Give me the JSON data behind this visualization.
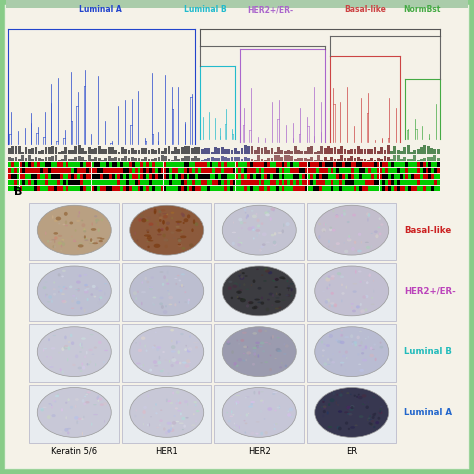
{
  "fig_width": 4.74,
  "fig_height": 4.74,
  "dpi": 100,
  "background_color": "#e8f0e0",
  "outer_border_color": "#88cc88",
  "inner_bg": "#f5f2e8",
  "subtype_labels": [
    "Basal-like",
    "HER2+/ER-",
    "Luminal B",
    "Luminal A"
  ],
  "subtype_colors": [
    "#cc2222",
    "#bb44bb",
    "#22bbbb",
    "#2266cc"
  ],
  "col_labels": [
    "Keratin 5/6",
    "HER1",
    "HER2",
    "ER"
  ],
  "dendrogram_labels": [
    "Luminal A",
    "Luminal B",
    "HER2+/ER-",
    "Basal-like",
    "NormBst"
  ],
  "dendrogram_colors": [
    "#2244cc",
    "#22bbcc",
    "#aa66cc",
    "#cc4444",
    "#44aa44"
  ],
  "section_b_label": "B",
  "cell_bg_color": "#e8ecf0",
  "cell_border_color": "#bbbbcc"
}
